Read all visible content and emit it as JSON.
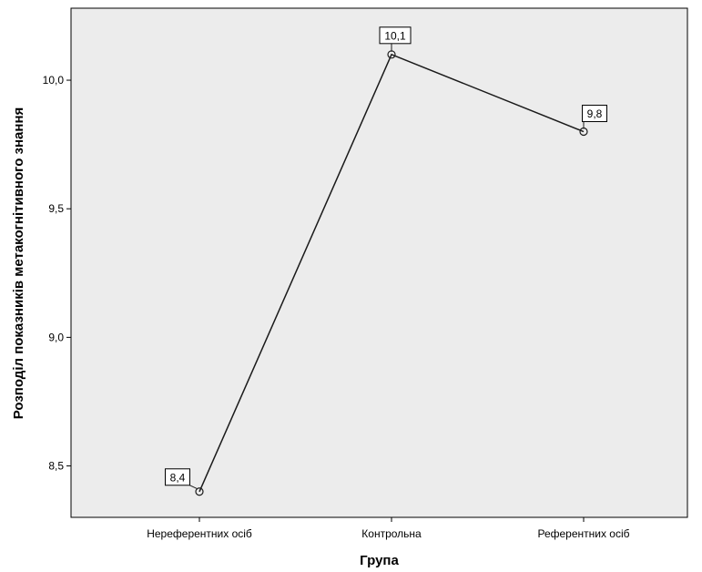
{
  "chart_data": {
    "type": "line",
    "title": "",
    "xlabel": "Група",
    "ylabel": "Розподіл показників метакогнітивного знання",
    "categories": [
      "Нереферентних осіб",
      "Контрольна",
      "Референтних осіб"
    ],
    "series": [
      {
        "values": [
          8.4,
          10.1,
          9.8
        ]
      }
    ],
    "data_labels": [
      "8,4",
      "10,1",
      "9,8"
    ],
    "ylim": [
      8.3,
      10.28
    ],
    "yticks": [
      8.5,
      9.0,
      9.5,
      10.0
    ],
    "ytick_labels": [
      "8,5",
      "9,0",
      "9,5",
      "10,0"
    ],
    "grid": false,
    "legend": "none",
    "colors": {
      "plot_background": "#ececec",
      "line": "#1a1a1a",
      "axis": "#000000"
    }
  }
}
